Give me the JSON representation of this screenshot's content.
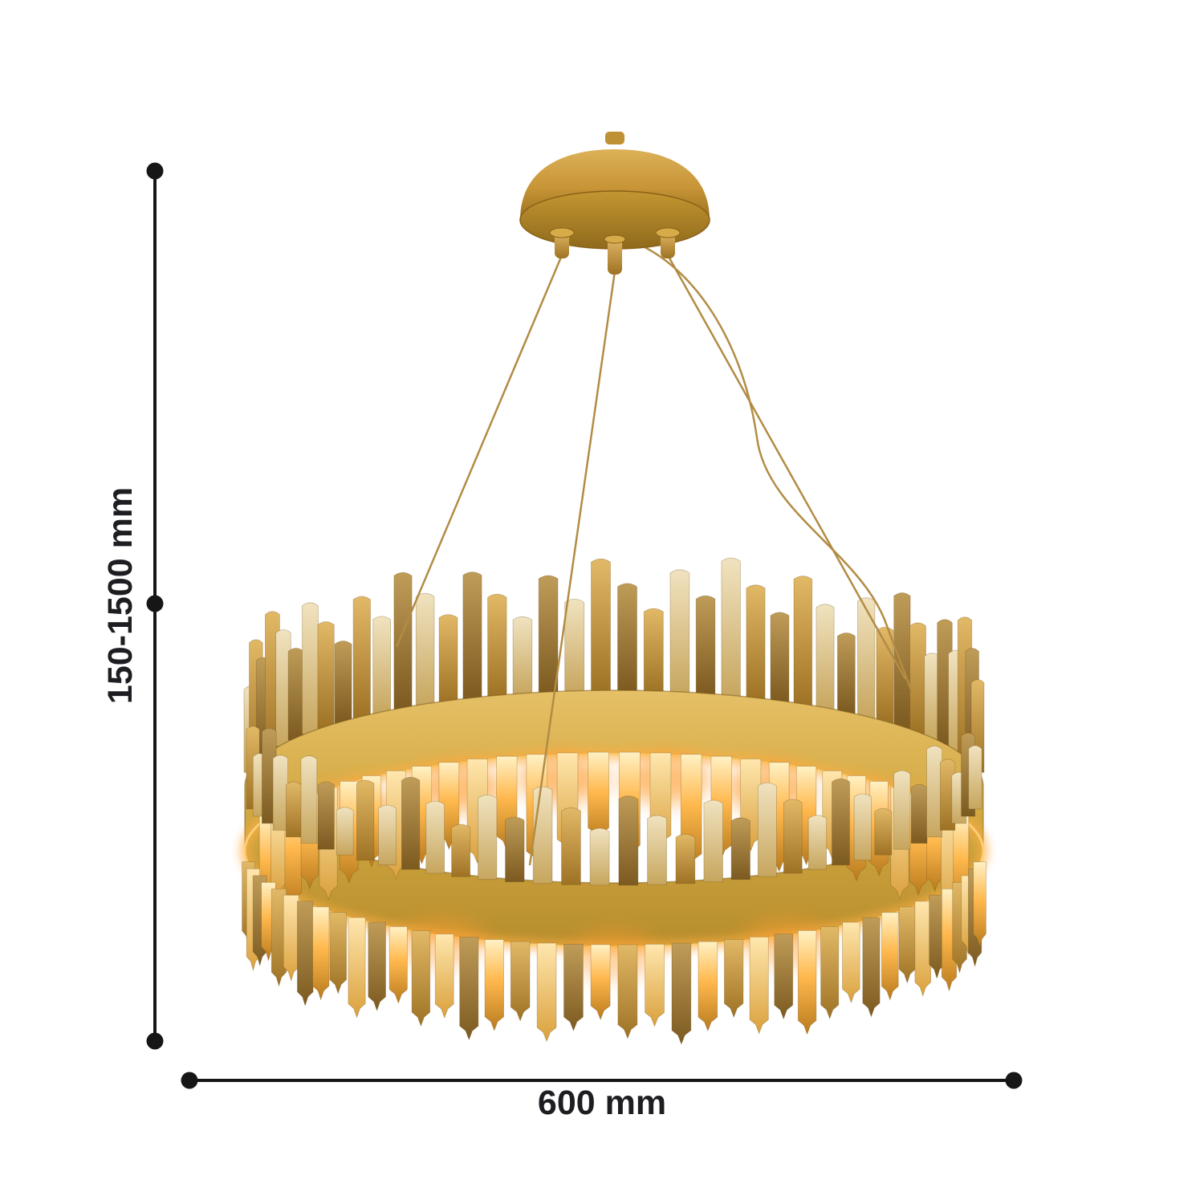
{
  "diagram": {
    "height_dimension": {
      "label": "150-1500 mm"
    },
    "width_dimension": {
      "label": "600 mm"
    }
  },
  "illustration": {
    "subject": "gold-crystal-ring-chandelier"
  },
  "colors": {
    "dimension_line": "#161616",
    "dimension_text": "#1e1e22",
    "band_gold": "#d3a943",
    "band_gold_light": "#e6c067",
    "band_gold_dark": "#b68d2c",
    "canopy_gold": "#c79436",
    "glow_orange": "#ffaf45",
    "glow_bright": "#ffd27a",
    "wire_gold": "#b28c44",
    "background": "#ffffff"
  }
}
